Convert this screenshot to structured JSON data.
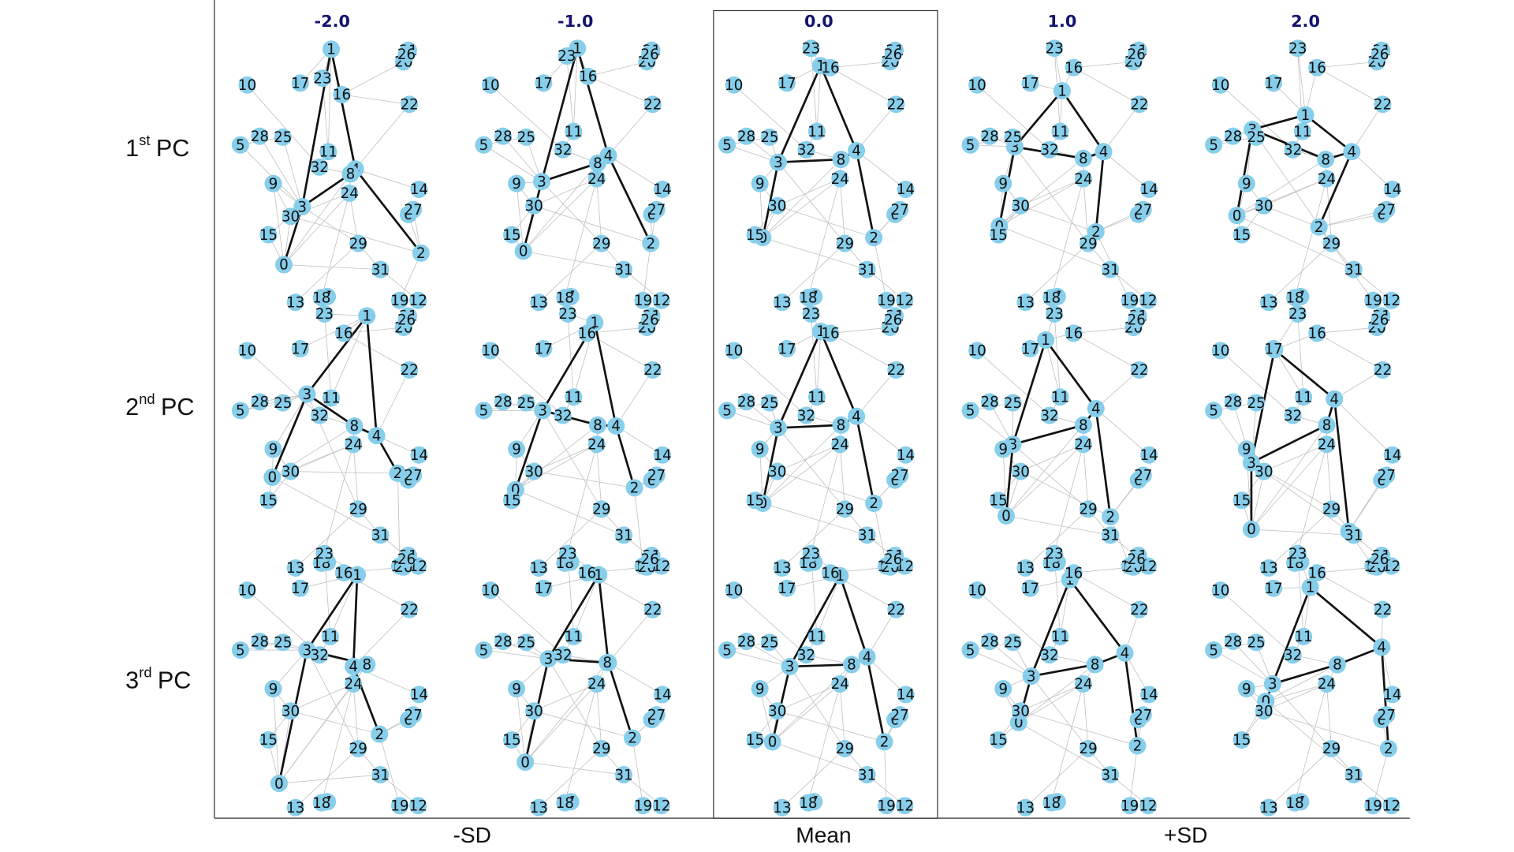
{
  "column_headers": [
    "-2.0",
    "-1.0",
    "0.0",
    "1.0",
    "2.0"
  ],
  "row_labels": [
    {
      "number": "1",
      "superscript": "st",
      "label": "PC"
    },
    {
      "number": "2",
      "superscript": "nd",
      "label": "PC"
    },
    {
      "number": "3",
      "superscript": "rd",
      "label": "PC"
    }
  ],
  "bottom_labels": [
    "-SD",
    "Mean",
    "+SD"
  ],
  "node_labels": [
    "0",
    "1",
    "2",
    "3",
    "4",
    "5",
    "6",
    "7",
    "8",
    "9",
    "10",
    "11",
    "12",
    "13",
    "14",
    "15",
    "16",
    "17",
    "18",
    "19",
    "20",
    "21",
    "22",
    "23",
    "24",
    "25",
    "26",
    "27",
    "28",
    "29",
    "30",
    "31",
    "32"
  ]
}
